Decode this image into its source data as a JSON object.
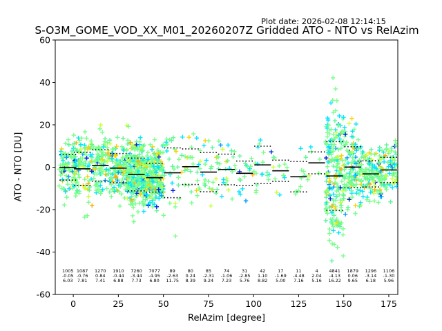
{
  "plot_date": "Plot date: 2026-02-08 12:14:15",
  "chart_data": {
    "type": "scatter",
    "title": "S-O3M_GOME_VOD_XX_M01_20260207Z Gridded ATO - NTO vs RelAzim",
    "xlabel": "RelAzim [degree]",
    "ylabel": "ATO - NTO [DU]",
    "xlim": [
      -10,
      180
    ],
    "ylim": [
      -60,
      60
    ],
    "xticks": [
      0,
      25,
      50,
      75,
      100,
      125,
      150,
      175
    ],
    "yticks": [
      -60,
      -40,
      -20,
      0,
      20,
      40,
      60
    ],
    "marker": "+",
    "point_colors": [
      "#0022dd",
      "#0099ff",
      "#00e5ff",
      "#77ff88",
      "#5ef59a",
      "#ccff33",
      "#ffd000",
      "#ffaa00",
      "#ff8800"
    ],
    "bins": [
      {
        "center": -3,
        "count": "1005",
        "mean": "-0.05",
        "std": "6.03"
      },
      {
        "center": 5,
        "count": "1087",
        "mean": "-0.76",
        "std": "7.81"
      },
      {
        "center": 15,
        "count": "1270",
        "mean": "0.84",
        "std": "7.41"
      },
      {
        "center": 25,
        "count": "1910",
        "mean": "-0.44",
        "std": "6.88"
      },
      {
        "center": 35,
        "count": "7260",
        "mean": "-3.44",
        "std": "7.73"
      },
      {
        "center": 45,
        "count": "7077",
        "mean": "-4.95",
        "std": "6.80"
      },
      {
        "center": 55,
        "count": "89",
        "mean": "-2.63",
        "std": "11.75"
      },
      {
        "center": 65,
        "count": "80",
        "mean": "0.24",
        "std": "8.39"
      },
      {
        "center": 75,
        "count": "85",
        "mean": "-2.31",
        "std": "9.24"
      },
      {
        "center": 85,
        "count": "74",
        "mean": "-1.06",
        "std": "7.23"
      },
      {
        "center": 95,
        "count": "31",
        "mean": "-2.85",
        "std": "5.76"
      },
      {
        "center": 105,
        "count": "42",
        "mean": "1.10",
        "std": "8.82"
      },
      {
        "center": 115,
        "count": "17",
        "mean": "-1.69",
        "std": "5.00"
      },
      {
        "center": 125,
        "count": "11",
        "mean": "-4.48",
        "std": "7.16"
      },
      {
        "center": 135,
        "count": "4",
        "mean": "2.04",
        "std": "5.16"
      },
      {
        "center": 145,
        "count": "4841",
        "mean": "-4.13",
        "std": "16.22"
      },
      {
        "center": 155,
        "count": "1879",
        "mean": "0.06",
        "std": "9.65"
      },
      {
        "center": 165,
        "count": "1296",
        "mean": "-3.14",
        "std": "6.18"
      },
      {
        "center": 175,
        "count": "1106",
        "mean": "-1.30",
        "std": "5.96"
      }
    ]
  }
}
